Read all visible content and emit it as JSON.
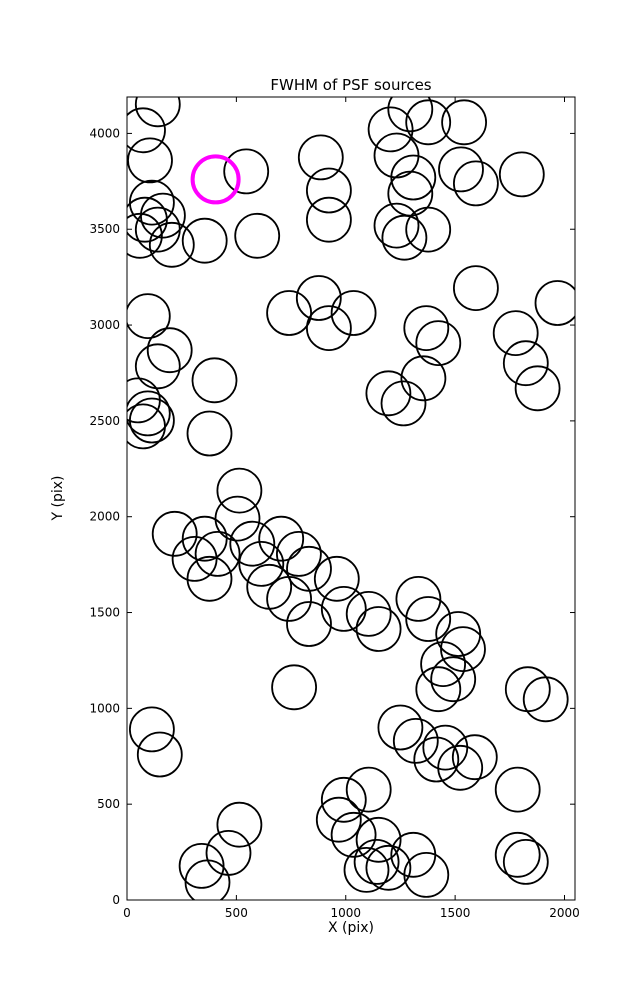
{
  "chart_data": {
    "type": "scatter",
    "title": "FWHM of PSF sources",
    "xlabel": "X (pix)",
    "ylabel": "Y (pix)",
    "xlim": [
      0,
      2048
    ],
    "ylim": [
      0,
      4190
    ],
    "xticks": [
      0,
      500,
      1000,
      1500,
      2000
    ],
    "xtick_labels": [
      "0",
      "500",
      "1000",
      "1500",
      "2000"
    ],
    "yticks": [
      0,
      500,
      1000,
      1500,
      2000,
      2500,
      3000,
      3500,
      4000
    ],
    "ytick_labels": [
      "0",
      "500",
      "1000",
      "1500",
      "2000",
      "2500",
      "3000",
      "3500",
      "4000"
    ],
    "grid": false,
    "legend": "none",
    "marker": "open-circle",
    "marker_radius_px": 22,
    "marker_linewidth": 1.8,
    "colors": {
      "marker": "#000000",
      "axes": "#000000",
      "highlight": "#ff00ff",
      "background": "#ffffff"
    },
    "highlighted_source": {
      "x": 405,
      "y": 3760,
      "radius_px": 23,
      "linewidth": 4
    },
    "sources": [
      [
        141,
        4152
      ],
      [
        73,
        4016
      ],
      [
        105,
        3859
      ],
      [
        114,
        3639
      ],
      [
        164,
        3571
      ],
      [
        82,
        3550
      ],
      [
        141,
        3498
      ],
      [
        59,
        3466
      ],
      [
        205,
        3419
      ],
      [
        355,
        3440
      ],
      [
        595,
        3466
      ],
      [
        545,
        3802
      ],
      [
        886,
        3875
      ],
      [
        923,
        3702
      ],
      [
        923,
        3550
      ],
      [
        1205,
        4021
      ],
      [
        1295,
        4126
      ],
      [
        1377,
        4058
      ],
      [
        1232,
        3885
      ],
      [
        1309,
        3770
      ],
      [
        1295,
        3686
      ],
      [
        1232,
        3519
      ],
      [
        1268,
        3456
      ],
      [
        1377,
        3498
      ],
      [
        1541,
        4058
      ],
      [
        1527,
        3812
      ],
      [
        1595,
        3739
      ],
      [
        1805,
        3786
      ],
      [
        1595,
        3193
      ],
      [
        1968,
        3115
      ],
      [
        95,
        3047
      ],
      [
        195,
        2869
      ],
      [
        141,
        2785
      ],
      [
        741,
        3063
      ],
      [
        877,
        3141
      ],
      [
        923,
        2984
      ],
      [
        1036,
        3063
      ],
      [
        400,
        2712
      ],
      [
        50,
        2607
      ],
      [
        95,
        2539
      ],
      [
        114,
        2502
      ],
      [
        73,
        2471
      ],
      [
        377,
        2434
      ],
      [
        1368,
        2984
      ],
      [
        1423,
        2906
      ],
      [
        1355,
        2722
      ],
      [
        1195,
        2644
      ],
      [
        1264,
        2591
      ],
      [
        1777,
        2958
      ],
      [
        1823,
        2801
      ],
      [
        1877,
        2670
      ],
      [
        514,
        2136
      ],
      [
        505,
        1990
      ],
      [
        218,
        1911
      ],
      [
        355,
        1885
      ],
      [
        309,
        1780
      ],
      [
        414,
        1806
      ],
      [
        377,
        1676
      ],
      [
        573,
        1859
      ],
      [
        614,
        1754
      ],
      [
        705,
        1885
      ],
      [
        786,
        1806
      ],
      [
        832,
        1728
      ],
      [
        650,
        1634
      ],
      [
        741,
        1571
      ],
      [
        959,
        1676
      ],
      [
        991,
        1519
      ],
      [
        832,
        1440
      ],
      [
        1105,
        1493
      ],
      [
        1150,
        1414
      ],
      [
        1332,
        1571
      ],
      [
        1377,
        1466
      ],
      [
        1514,
        1388
      ],
      [
        1536,
        1309
      ],
      [
        1445,
        1231
      ],
      [
        1491,
        1152
      ],
      [
        1423,
        1100
      ],
      [
        764,
        1110
      ],
      [
        1832,
        1100
      ],
      [
        1914,
        1047
      ],
      [
        114,
        890
      ],
      [
        150,
        759
      ],
      [
        1250,
        900
      ],
      [
        1320,
        830
      ],
      [
        1414,
        733
      ],
      [
        1455,
        795
      ],
      [
        1523,
        690
      ],
      [
        1590,
        745
      ],
      [
        1786,
        576
      ],
      [
        1105,
        576
      ],
      [
        991,
        523
      ],
      [
        968,
        419
      ],
      [
        1036,
        340
      ],
      [
        514,
        393
      ],
      [
        464,
        246
      ],
      [
        341,
        178
      ],
      [
        368,
        92
      ],
      [
        1150,
        314
      ],
      [
        1141,
        199
      ],
      [
        1095,
        157
      ],
      [
        1195,
        168
      ],
      [
        1309,
        236
      ],
      [
        1368,
        131
      ],
      [
        1786,
        236
      ],
      [
        1823,
        199
      ]
    ]
  }
}
